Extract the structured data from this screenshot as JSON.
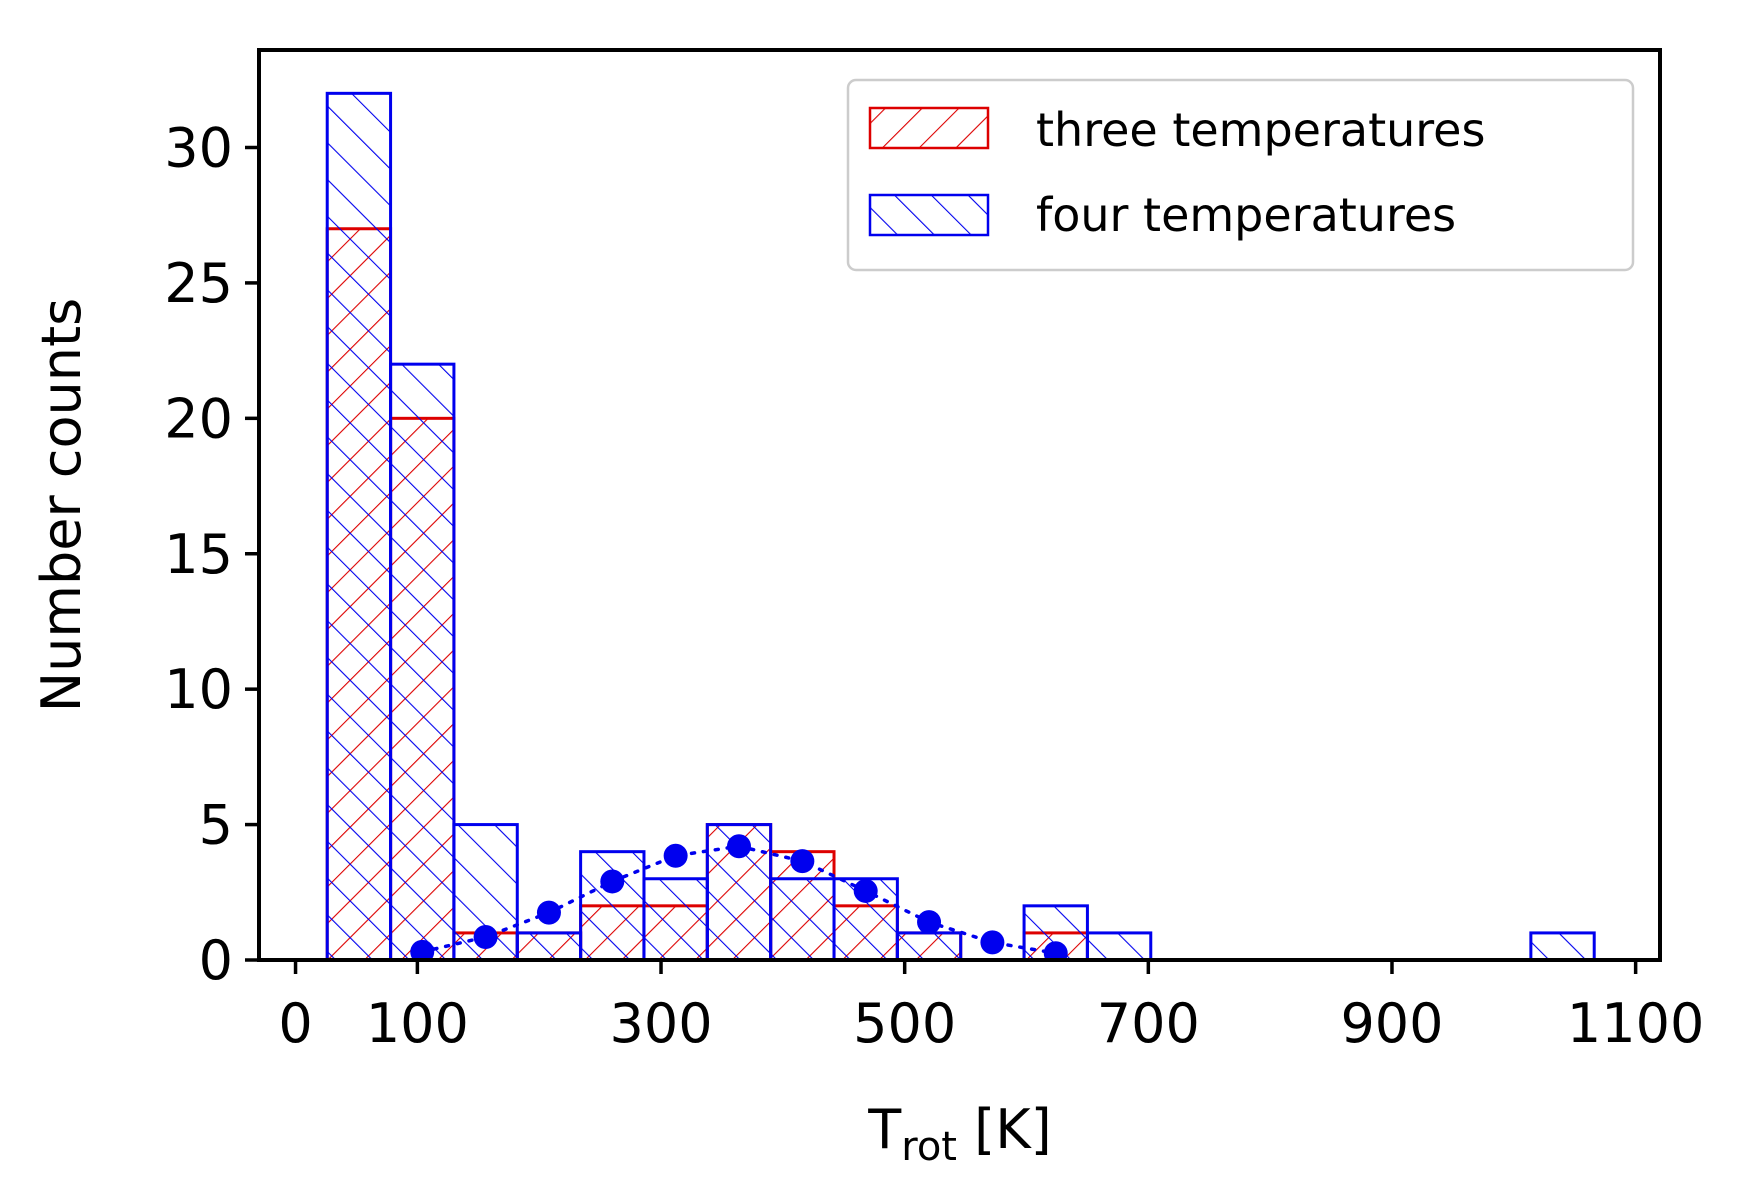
{
  "chart_data": {
    "type": "bar",
    "xlabel_main": "T",
    "xlabel_sub": "rot",
    "xlabel_unit": "[K]",
    "ylabel": "Number counts",
    "xlim": [
      -30,
      1120
    ],
    "ylim": [
      0,
      33.6
    ],
    "xticks": [
      0,
      100,
      300,
      500,
      700,
      900,
      1100
    ],
    "yticks": [
      0,
      5,
      10,
      15,
      20,
      25,
      30
    ],
    "bin_width": 52,
    "series": [
      {
        "name": "three temperatures",
        "color": "#dd0000",
        "hatch": "forward",
        "bins": [
          {
            "start": 26,
            "value": 27
          },
          {
            "start": 78,
            "value": 20
          },
          {
            "start": 130,
            "value": 1
          },
          {
            "start": 182,
            "value": 1
          },
          {
            "start": 234,
            "value": 2
          },
          {
            "start": 286,
            "value": 2
          },
          {
            "start": 338,
            "value": 5
          },
          {
            "start": 390,
            "value": 4
          },
          {
            "start": 442,
            "value": 2
          },
          {
            "start": 494,
            "value": 1
          },
          {
            "start": 598,
            "value": 1
          }
        ]
      },
      {
        "name": "four temperatures",
        "color": "#0000ee",
        "hatch": "back",
        "bins": [
          {
            "start": 26,
            "value": 32
          },
          {
            "start": 78,
            "value": 22
          },
          {
            "start": 130,
            "value": 5
          },
          {
            "start": 182,
            "value": 1
          },
          {
            "start": 234,
            "value": 4
          },
          {
            "start": 286,
            "value": 3
          },
          {
            "start": 338,
            "value": 5
          },
          {
            "start": 390,
            "value": 3
          },
          {
            "start": 442,
            "value": 3
          },
          {
            "start": 494,
            "value": 1
          },
          {
            "start": 598,
            "value": 2
          },
          {
            "start": 650,
            "value": 1
          },
          {
            "start": 1014,
            "value": 1
          }
        ]
      }
    ],
    "fit_points": {
      "color": "#0000ee",
      "x": [
        104,
        156,
        208,
        260,
        312,
        364,
        416,
        468,
        520,
        572,
        624
      ],
      "y": [
        0.3,
        0.85,
        1.75,
        2.9,
        3.85,
        4.2,
        3.65,
        2.55,
        1.4,
        0.65,
        0.25
      ]
    },
    "legend": {
      "position": "top-right",
      "entries": [
        "three temperatures",
        "four temperatures"
      ]
    }
  }
}
